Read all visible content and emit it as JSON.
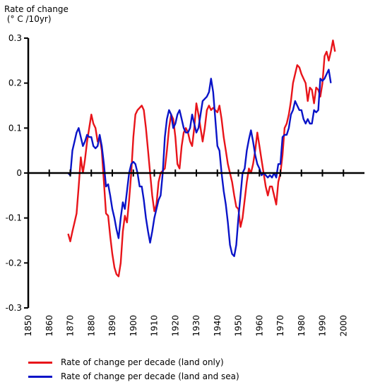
{
  "chart_data": {
    "type": "line",
    "ylabel_lines": [
      "Rate of change",
      "(° C /10yr)"
    ],
    "xlim": [
      1850,
      2010
    ],
    "ylim": [
      -0.3,
      0.3
    ],
    "x_ticks": [
      1850,
      1860,
      1870,
      1880,
      1890,
      1900,
      1910,
      1920,
      1930,
      1940,
      1950,
      1960,
      1970,
      1980,
      1990,
      2000
    ],
    "y_ticks": [
      -0.3,
      -0.2,
      -0.1,
      0,
      0.1,
      0.2,
      0.3
    ],
    "y_tick_labels": [
      "-0.3",
      "-0.2",
      "-0.1",
      "0",
      "0.1",
      "0.2",
      "0.3"
    ],
    "grid": false,
    "legend_position": "bottom",
    "series": [
      {
        "name": "Rate of change per decade (land only)",
        "color": "#e8141a",
        "points": [
          [
            1869,
            -0.135
          ],
          [
            1870,
            -0.152
          ],
          [
            1871,
            -0.13
          ],
          [
            1872,
            -0.11
          ],
          [
            1873,
            -0.09
          ],
          [
            1874,
            -0.03
          ],
          [
            1875,
            0.035
          ],
          [
            1876,
            0.0
          ],
          [
            1877,
            0.03
          ],
          [
            1878,
            0.07
          ],
          [
            1879,
            0.1
          ],
          [
            1880,
            0.13
          ],
          [
            1881,
            0.11
          ],
          [
            1882,
            0.1
          ],
          [
            1883,
            0.07
          ],
          [
            1884,
            0.08
          ],
          [
            1885,
            0.05
          ],
          [
            1886,
            -0.02
          ],
          [
            1887,
            -0.09
          ],
          [
            1888,
            -0.095
          ],
          [
            1889,
            -0.14
          ],
          [
            1890,
            -0.18
          ],
          [
            1891,
            -0.21
          ],
          [
            1892,
            -0.225
          ],
          [
            1893,
            -0.23
          ],
          [
            1894,
            -0.2
          ],
          [
            1895,
            -0.13
          ],
          [
            1896,
            -0.095
          ],
          [
            1897,
            -0.11
          ],
          [
            1898,
            -0.06
          ],
          [
            1899,
            0.0
          ],
          [
            1900,
            0.08
          ],
          [
            1901,
            0.13
          ],
          [
            1902,
            0.14
          ],
          [
            1903,
            0.145
          ],
          [
            1904,
            0.15
          ],
          [
            1905,
            0.14
          ],
          [
            1906,
            0.1
          ],
          [
            1907,
            0.05
          ],
          [
            1908,
            0.0
          ],
          [
            1909,
            -0.05
          ],
          [
            1910,
            -0.085
          ],
          [
            1911,
            -0.07
          ],
          [
            1912,
            -0.02
          ],
          [
            1913,
            0.0
          ],
          [
            1914,
            0.005
          ],
          [
            1915,
            0.01
          ],
          [
            1916,
            0.05
          ],
          [
            1917,
            0.1
          ],
          [
            1918,
            0.13
          ],
          [
            1919,
            0.12
          ],
          [
            1920,
            0.08
          ],
          [
            1921,
            0.02
          ],
          [
            1922,
            0.01
          ],
          [
            1923,
            0.06
          ],
          [
            1924,
            0.09
          ],
          [
            1925,
            0.1
          ],
          [
            1926,
            0.09
          ],
          [
            1927,
            0.07
          ],
          [
            1928,
            0.06
          ],
          [
            1929,
            0.1
          ],
          [
            1930,
            0.155
          ],
          [
            1931,
            0.13
          ],
          [
            1932,
            0.1
          ],
          [
            1933,
            0.07
          ],
          [
            1934,
            0.1
          ],
          [
            1935,
            0.14
          ],
          [
            1936,
            0.15
          ],
          [
            1937,
            0.14
          ],
          [
            1938,
            0.145
          ],
          [
            1939,
            0.14
          ],
          [
            1940,
            0.135
          ],
          [
            1941,
            0.15
          ],
          [
            1942,
            0.12
          ],
          [
            1943,
            0.08
          ],
          [
            1944,
            0.05
          ],
          [
            1945,
            0.02
          ],
          [
            1946,
            0.0
          ],
          [
            1947,
            -0.02
          ],
          [
            1948,
            -0.05
          ],
          [
            1949,
            -0.075
          ],
          [
            1950,
            -0.08
          ],
          [
            1951,
            -0.12
          ],
          [
            1952,
            -0.1
          ],
          [
            1953,
            -0.06
          ],
          [
            1954,
            -0.02
          ],
          [
            1955,
            0.01
          ],
          [
            1956,
            0.0
          ],
          [
            1957,
            0.02
          ],
          [
            1958,
            0.05
          ],
          [
            1959,
            0.09
          ],
          [
            1960,
            0.06
          ],
          [
            1961,
            0.03
          ],
          [
            1962,
            0.0
          ],
          [
            1963,
            -0.03
          ],
          [
            1964,
            -0.05
          ],
          [
            1965,
            -0.03
          ],
          [
            1966,
            -0.03
          ],
          [
            1967,
            -0.05
          ],
          [
            1968,
            -0.07
          ],
          [
            1969,
            -0.02
          ],
          [
            1970,
            0.0
          ],
          [
            1971,
            0.04
          ],
          [
            1972,
            0.1
          ],
          [
            1973,
            0.11
          ],
          [
            1974,
            0.13
          ],
          [
            1975,
            0.16
          ],
          [
            1976,
            0.2
          ],
          [
            1977,
            0.22
          ],
          [
            1978,
            0.24
          ],
          [
            1979,
            0.235
          ],
          [
            1980,
            0.22
          ],
          [
            1981,
            0.21
          ],
          [
            1982,
            0.2
          ],
          [
            1983,
            0.16
          ],
          [
            1984,
            0.19
          ],
          [
            1985,
            0.185
          ],
          [
            1986,
            0.155
          ],
          [
            1987,
            0.19
          ],
          [
            1988,
            0.185
          ],
          [
            1989,
            0.17
          ],
          [
            1990,
            0.2
          ],
          [
            1991,
            0.26
          ],
          [
            1992,
            0.27
          ],
          [
            1993,
            0.25
          ],
          [
            1994,
            0.27
          ],
          [
            1995,
            0.295
          ],
          [
            1996,
            0.27
          ]
        ]
      },
      {
        "name": "Rate of change per decade (land and sea)",
        "color": "#0a14c8",
        "points": [
          [
            1869,
            0.0
          ],
          [
            1870,
            -0.005
          ],
          [
            1871,
            0.05
          ],
          [
            1872,
            0.07
          ],
          [
            1873,
            0.09
          ],
          [
            1874,
            0.1
          ],
          [
            1875,
            0.08
          ],
          [
            1876,
            0.06
          ],
          [
            1877,
            0.07
          ],
          [
            1878,
            0.085
          ],
          [
            1879,
            0.08
          ],
          [
            1880,
            0.08
          ],
          [
            1881,
            0.06
          ],
          [
            1882,
            0.055
          ],
          [
            1883,
            0.06
          ],
          [
            1884,
            0.085
          ],
          [
            1885,
            0.06
          ],
          [
            1886,
            0.02
          ],
          [
            1887,
            -0.03
          ],
          [
            1888,
            -0.025
          ],
          [
            1889,
            -0.05
          ],
          [
            1890,
            -0.08
          ],
          [
            1891,
            -0.1
          ],
          [
            1892,
            -0.125
          ],
          [
            1893,
            -0.145
          ],
          [
            1894,
            -0.1
          ],
          [
            1895,
            -0.065
          ],
          [
            1896,
            -0.08
          ],
          [
            1897,
            -0.04
          ],
          [
            1898,
            0.0
          ],
          [
            1899,
            0.02
          ],
          [
            1900,
            0.025
          ],
          [
            1901,
            0.02
          ],
          [
            1902,
            0.0
          ],
          [
            1903,
            -0.03
          ],
          [
            1904,
            -0.03
          ],
          [
            1905,
            -0.06
          ],
          [
            1906,
            -0.1
          ],
          [
            1907,
            -0.13
          ],
          [
            1908,
            -0.155
          ],
          [
            1909,
            -0.13
          ],
          [
            1910,
            -0.1
          ],
          [
            1911,
            -0.08
          ],
          [
            1912,
            -0.06
          ],
          [
            1913,
            -0.05
          ],
          [
            1914,
            0.0
          ],
          [
            1915,
            0.08
          ],
          [
            1916,
            0.12
          ],
          [
            1917,
            0.14
          ],
          [
            1918,
            0.13
          ],
          [
            1919,
            0.1
          ],
          [
            1920,
            0.11
          ],
          [
            1921,
            0.13
          ],
          [
            1922,
            0.14
          ],
          [
            1923,
            0.12
          ],
          [
            1924,
            0.1
          ],
          [
            1925,
            0.09
          ],
          [
            1926,
            0.09
          ],
          [
            1927,
            0.1
          ],
          [
            1928,
            0.13
          ],
          [
            1929,
            0.11
          ],
          [
            1930,
            0.09
          ],
          [
            1931,
            0.1
          ],
          [
            1932,
            0.13
          ],
          [
            1933,
            0.16
          ],
          [
            1934,
            0.165
          ],
          [
            1935,
            0.17
          ],
          [
            1936,
            0.18
          ],
          [
            1937,
            0.21
          ],
          [
            1938,
            0.18
          ],
          [
            1939,
            0.12
          ],
          [
            1940,
            0.06
          ],
          [
            1941,
            0.05
          ],
          [
            1942,
            0.0
          ],
          [
            1943,
            -0.04
          ],
          [
            1944,
            -0.07
          ],
          [
            1945,
            -0.11
          ],
          [
            1946,
            -0.16
          ],
          [
            1947,
            -0.18
          ],
          [
            1948,
            -0.185
          ],
          [
            1949,
            -0.16
          ],
          [
            1950,
            -0.1
          ],
          [
            1951,
            -0.05
          ],
          [
            1952,
            0.0
          ],
          [
            1953,
            0.01
          ],
          [
            1954,
            0.05
          ],
          [
            1955,
            0.075
          ],
          [
            1956,
            0.095
          ],
          [
            1957,
            0.07
          ],
          [
            1958,
            0.04
          ],
          [
            1959,
            0.02
          ],
          [
            1960,
            0.01
          ],
          [
            1961,
            -0.005
          ],
          [
            1962,
            0.0
          ],
          [
            1963,
            -0.005
          ],
          [
            1964,
            -0.01
          ],
          [
            1965,
            -0.005
          ],
          [
            1966,
            -0.01
          ],
          [
            1967,
            0.0
          ],
          [
            1968,
            -0.01
          ],
          [
            1969,
            0.02
          ],
          [
            1970,
            0.02
          ],
          [
            1971,
            0.08
          ],
          [
            1972,
            0.085
          ],
          [
            1973,
            0.085
          ],
          [
            1974,
            0.1
          ],
          [
            1975,
            0.13
          ],
          [
            1976,
            0.14
          ],
          [
            1977,
            0.16
          ],
          [
            1978,
            0.15
          ],
          [
            1979,
            0.14
          ],
          [
            1980,
            0.14
          ],
          [
            1981,
            0.12
          ],
          [
            1982,
            0.11
          ],
          [
            1983,
            0.12
          ],
          [
            1984,
            0.11
          ],
          [
            1985,
            0.11
          ],
          [
            1986,
            0.14
          ],
          [
            1987,
            0.135
          ],
          [
            1988,
            0.14
          ],
          [
            1989,
            0.21
          ],
          [
            1990,
            0.205
          ],
          [
            1991,
            0.21
          ],
          [
            1992,
            0.22
          ],
          [
            1993,
            0.23
          ],
          [
            1994,
            0.2
          ]
        ]
      }
    ]
  }
}
